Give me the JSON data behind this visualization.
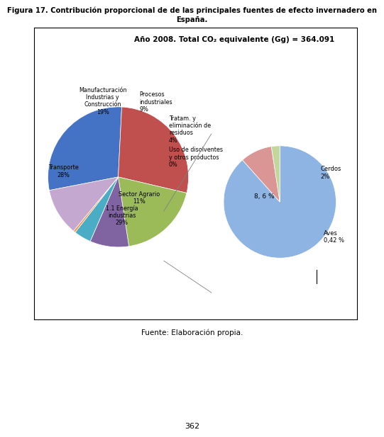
{
  "title_line1": "Figura 17. Contribución proporcional de de las principales fuentes de efecto invernadero en",
  "title_line2": "España.",
  "chart_title": "Año 2008. Total CO₂ equivalente (Gg) = 364.091",
  "source": "Fuente: Elaboración propia.",
  "page_number": "362",
  "main_pie": {
    "values": [
      29,
      28,
      19,
      9,
      4,
      0.5,
      11
    ],
    "colors": [
      "#4472C4",
      "#C0504D",
      "#9BBB59",
      "#8064A2",
      "#4BACC6",
      "#F79646",
      "#C4A8D0"
    ],
    "startangle": 191,
    "counterclock": false
  },
  "small_pie": {
    "values": [
      88.42,
      9.16,
      2.42
    ],
    "colors": [
      "#8EB4E3",
      "#D99694",
      "#C3D69B"
    ],
    "startangle": 90,
    "counterclock": false
  },
  "bg_color": "#FFFFFF"
}
